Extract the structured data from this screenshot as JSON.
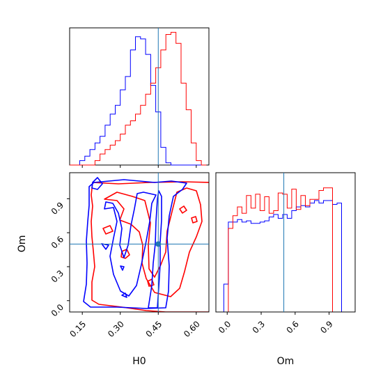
{
  "figure_type": "corner plot",
  "colors": {
    "series_blue": "#0000ff",
    "series_red": "#ff0000",
    "truth": "#1f77b4",
    "frame": "#000000"
  },
  "chart_data": [
    {
      "panel": "H0 marginal histogram",
      "type": "step-histogram",
      "x_range": [
        0.1,
        0.65
      ],
      "truth_x": 0.45,
      "series": [
        {
          "color": "#0000ff",
          "edges": [
            0.1,
            0.12,
            0.14,
            0.16,
            0.18,
            0.2,
            0.22,
            0.24,
            0.26,
            0.28,
            0.3,
            0.32,
            0.34,
            0.36,
            0.38,
            0.4,
            0.42,
            0.44,
            0.46,
            0.48,
            0.5,
            0.52,
            0.54,
            0.56,
            0.58,
            0.6,
            0.62,
            0.64
          ],
          "values": [
            0,
            0,
            2,
            4,
            7,
            10,
            13,
            18,
            23,
            27,
            34,
            40,
            52,
            58,
            57,
            50,
            36,
            24,
            8,
            1,
            0,
            0,
            0,
            0,
            0,
            0,
            0
          ]
        },
        {
          "color": "#ff0000",
          "edges": [
            0.1,
            0.12,
            0.14,
            0.16,
            0.18,
            0.2,
            0.22,
            0.24,
            0.26,
            0.28,
            0.3,
            0.32,
            0.34,
            0.36,
            0.38,
            0.4,
            0.42,
            0.44,
            0.46,
            0.48,
            0.5,
            0.52,
            0.54,
            0.56,
            0.58,
            0.6,
            0.62,
            0.64
          ],
          "values": [
            0,
            0,
            0,
            0,
            0,
            2,
            5,
            7,
            9,
            11,
            14,
            18,
            20,
            23,
            27,
            32,
            37,
            44,
            52,
            59,
            60,
            55,
            37,
            25,
            10,
            2,
            0
          ]
        }
      ],
      "x_ticks": [
        0.15,
        0.3,
        0.45,
        0.6
      ],
      "y_ticks_shown": false
    },
    {
      "panel": "Om vs H0 2D contours",
      "type": "contour",
      "xlabel": "H0",
      "ylabel": "Om",
      "x_range": [
        0.1,
        0.65
      ],
      "y_range": [
        -0.1,
        1.13
      ],
      "x_ticks": [
        "0.15",
        "0.30",
        "0.45",
        "0.60"
      ],
      "y_ticks": [
        "0.0",
        "0.3",
        "0.6",
        "0.9"
      ],
      "truth": {
        "x": 0.45,
        "y": 0.5
      },
      "series": [
        {
          "color": "#0000ff",
          "region": "blue H0 ~0.17-0.43"
        },
        {
          "color": "#ff0000",
          "region": "red H0 ~0.23-0.63"
        }
      ]
    },
    {
      "panel": "Om marginal histogram",
      "type": "step-histogram",
      "xlabel": "Om",
      "x_range": [
        -0.1,
        1.13
      ],
      "truth_x": 0.5,
      "x_ticks": [
        "0.0",
        "0.3",
        "0.6",
        "0.9"
      ],
      "series": [
        {
          "color": "#0000ff",
          "edges": [
            -0.06,
            -0.03,
            0.01,
            0.05,
            0.09,
            0.13,
            0.17,
            0.21,
            0.25,
            0.29,
            0.33,
            0.37,
            0.41,
            0.45,
            0.49,
            0.53,
            0.57,
            0.61,
            0.65,
            0.69,
            0.73,
            0.77,
            0.81,
            0.85,
            0.89,
            0.93,
            0.97,
            1.01,
            1.05,
            1.09
          ],
          "values": [
            0,
            22,
            71,
            71,
            73,
            71,
            72,
            70,
            70,
            71,
            72,
            75,
            77,
            74,
            77,
            74,
            80,
            83,
            84,
            83,
            86,
            88,
            86,
            88,
            88,
            85,
            86,
            0,
            0
          ]
        },
        {
          "color": "#ff0000",
          "edges": [
            -0.06,
            -0.03,
            0.01,
            0.05,
            0.09,
            0.13,
            0.17,
            0.21,
            0.25,
            0.29,
            0.33,
            0.37,
            0.41,
            0.45,
            0.49,
            0.53,
            0.57,
            0.61,
            0.65,
            0.69,
            0.73,
            0.77,
            0.81,
            0.85,
            0.89,
            0.93,
            0.97,
            1.01,
            1.05,
            1.09
          ],
          "values": [
            0,
            0,
            66,
            76,
            83,
            78,
            92,
            82,
            93,
            80,
            91,
            78,
            80,
            94,
            93,
            82,
            97,
            81,
            92,
            84,
            89,
            89,
            96,
            98,
            98,
            0,
            0,
            0,
            0
          ]
        }
      ]
    }
  ]
}
